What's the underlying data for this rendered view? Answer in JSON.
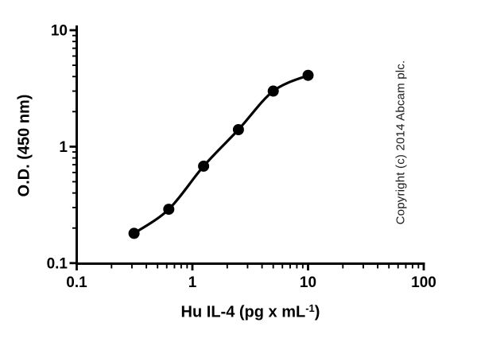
{
  "chart_data": {
    "type": "scatter",
    "subtype": "standard-curve-log-log",
    "title": "",
    "xlabel": "Hu IL-4 (pg x mL⁻¹)",
    "xlabel_parts": {
      "pre": "Hu IL-4 (pg x mL",
      "sup": "-1",
      "post": ")"
    },
    "ylabel": "O.D. (450 nm)",
    "x": [
      0.313,
      0.625,
      1.25,
      2.5,
      5,
      10
    ],
    "y": [
      0.18,
      0.29,
      0.68,
      1.4,
      3.0,
      4.1
    ],
    "xlim": [
      0.1,
      100
    ],
    "ylim": [
      0.1,
      10
    ],
    "xscale": "log",
    "yscale": "log",
    "xticks": [
      0.1,
      1,
      10,
      100
    ],
    "xtick_labels": [
      "0.1",
      "1",
      "10",
      "100"
    ],
    "yticks": [
      0.1,
      1,
      10
    ],
    "ytick_labels": [
      "0.1",
      "1",
      "10"
    ],
    "grid": "off",
    "legend": "none",
    "marker": "filled-circle",
    "line": "smooth-fit-through-points",
    "series_color": "#000000",
    "axis_color": "#000000"
  },
  "watermark": {
    "text": "Copyright (c) 2014 Abcam plc."
  }
}
